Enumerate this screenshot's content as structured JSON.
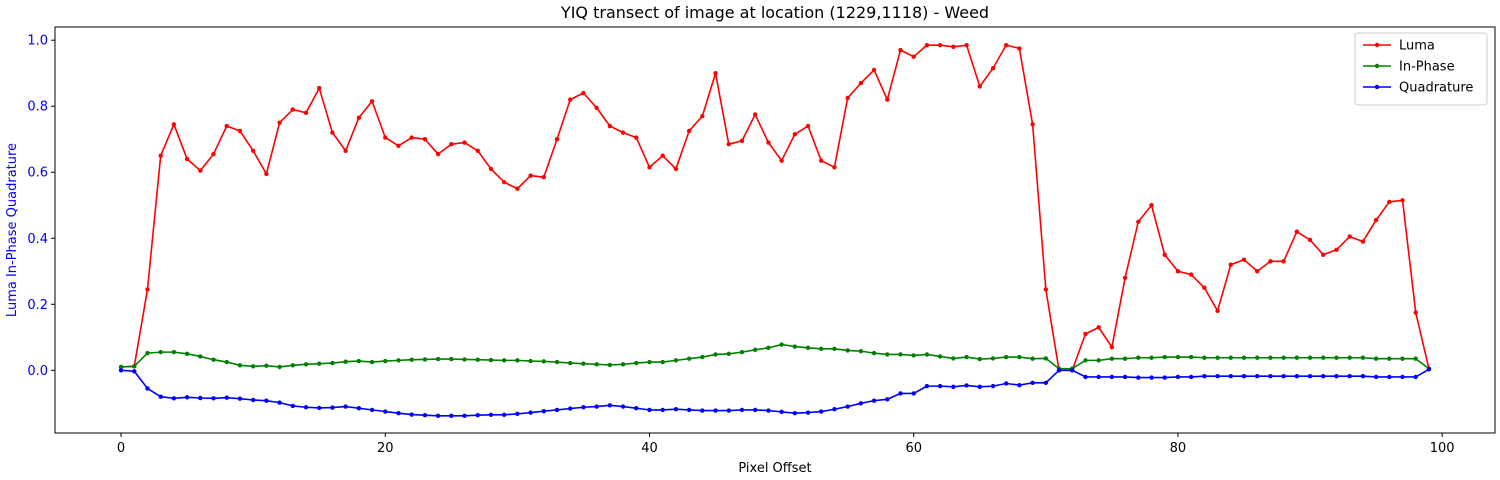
{
  "chart_data": {
    "type": "line",
    "title": "YIQ transect of image at location (1229,1118) - Weed",
    "xlabel": "Pixel Offset",
    "ylabel": "Luma In-Phase Quadrature",
    "xlim": [
      -5,
      104
    ],
    "ylim": [
      -0.19,
      1.04
    ],
    "xticks": [
      0,
      20,
      40,
      60,
      80,
      100
    ],
    "yticks": [
      0.0,
      0.2,
      0.4,
      0.6,
      0.8,
      1.0
    ],
    "ytick_color": "#0000ff",
    "ylabel_color": "#0000ff",
    "grid": false,
    "legend_position": "top-right",
    "x": [
      0,
      1,
      2,
      3,
      4,
      5,
      6,
      7,
      8,
      9,
      10,
      11,
      12,
      13,
      14,
      15,
      16,
      17,
      18,
      19,
      20,
      21,
      22,
      23,
      24,
      25,
      26,
      27,
      28,
      29,
      30,
      31,
      32,
      33,
      34,
      35,
      36,
      37,
      38,
      39,
      40,
      41,
      42,
      43,
      44,
      45,
      46,
      47,
      48,
      49,
      50,
      51,
      52,
      53,
      54,
      55,
      56,
      57,
      58,
      59,
      60,
      61,
      62,
      63,
      64,
      65,
      66,
      67,
      68,
      69,
      70,
      71,
      72,
      73,
      74,
      75,
      76,
      77,
      78,
      79,
      80,
      81,
      82,
      83,
      84,
      85,
      86,
      87,
      88,
      89,
      90,
      91,
      92,
      93,
      94,
      95,
      96,
      97,
      98,
      99
    ],
    "series": [
      {
        "name": "Luma",
        "color": "#ff0000",
        "values": [
          0.01,
          0.012,
          0.245,
          0.65,
          0.745,
          0.64,
          0.605,
          0.655,
          0.74,
          0.725,
          0.665,
          0.595,
          0.75,
          0.79,
          0.78,
          0.855,
          0.72,
          0.665,
          0.765,
          0.815,
          0.705,
          0.68,
          0.705,
          0.7,
          0.655,
          0.685,
          0.69,
          0.665,
          0.61,
          0.57,
          0.55,
          0.59,
          0.585,
          0.7,
          0.82,
          0.84,
          0.795,
          0.74,
          0.72,
          0.705,
          0.615,
          0.65,
          0.61,
          0.725,
          0.77,
          0.9,
          0.685,
          0.695,
          0.775,
          0.69,
          0.635,
          0.715,
          0.74,
          0.635,
          0.615,
          0.825,
          0.87,
          0.91,
          0.82,
          0.97,
          0.95,
          0.985,
          0.985,
          0.98,
          0.985,
          0.86,
          0.915,
          0.985,
          0.975,
          0.745,
          0.245,
          0.0,
          0.0,
          0.11,
          0.13,
          0.07,
          0.28,
          0.45,
          0.5,
          0.35,
          0.3,
          0.29,
          0.25,
          0.18,
          0.32,
          0.335,
          0.3,
          0.33,
          0.33,
          0.42,
          0.395,
          0.35,
          0.365,
          0.405,
          0.39,
          0.455,
          0.51,
          0.515,
          0.175,
          0.005
        ]
      },
      {
        "name": "In-Phase",
        "color": "#008000",
        "values": [
          0.01,
          0.012,
          0.052,
          0.055,
          0.055,
          0.05,
          0.042,
          0.032,
          0.025,
          0.015,
          0.012,
          0.014,
          0.01,
          0.015,
          0.018,
          0.02,
          0.022,
          0.026,
          0.028,
          0.025,
          0.028,
          0.03,
          0.032,
          0.033,
          0.034,
          0.034,
          0.033,
          0.032,
          0.031,
          0.03,
          0.03,
          0.028,
          0.027,
          0.025,
          0.022,
          0.02,
          0.018,
          0.016,
          0.018,
          0.022,
          0.025,
          0.025,
          0.03,
          0.035,
          0.04,
          0.048,
          0.05,
          0.055,
          0.062,
          0.068,
          0.078,
          0.072,
          0.068,
          0.065,
          0.065,
          0.06,
          0.058,
          0.052,
          0.048,
          0.048,
          0.045,
          0.048,
          0.042,
          0.036,
          0.04,
          0.034,
          0.036,
          0.04,
          0.04,
          0.035,
          0.036,
          0.005,
          0.005,
          0.03,
          0.03,
          0.035,
          0.035,
          0.038,
          0.038,
          0.04,
          0.04,
          0.04,
          0.038,
          0.038,
          0.038,
          0.038,
          0.038,
          0.038,
          0.038,
          0.038,
          0.038,
          0.038,
          0.038,
          0.038,
          0.038,
          0.035,
          0.035,
          0.035,
          0.035,
          0.005
        ]
      },
      {
        "name": "Quadrature",
        "color": "#0000ff",
        "values": [
          0.0,
          -0.003,
          -0.055,
          -0.08,
          -0.085,
          -0.082,
          -0.084,
          -0.085,
          -0.083,
          -0.086,
          -0.09,
          -0.092,
          -0.098,
          -0.108,
          -0.112,
          -0.114,
          -0.113,
          -0.11,
          -0.115,
          -0.12,
          -0.125,
          -0.13,
          -0.134,
          -0.136,
          -0.138,
          -0.138,
          -0.138,
          -0.136,
          -0.135,
          -0.135,
          -0.132,
          -0.128,
          -0.124,
          -0.12,
          -0.116,
          -0.112,
          -0.11,
          -0.106,
          -0.11,
          -0.115,
          -0.12,
          -0.12,
          -0.118,
          -0.12,
          -0.122,
          -0.122,
          -0.122,
          -0.12,
          -0.12,
          -0.122,
          -0.126,
          -0.13,
          -0.128,
          -0.125,
          -0.118,
          -0.11,
          -0.1,
          -0.092,
          -0.088,
          -0.07,
          -0.07,
          -0.048,
          -0.048,
          -0.05,
          -0.046,
          -0.05,
          -0.048,
          -0.04,
          -0.045,
          -0.038,
          -0.038,
          0.0,
          0.0,
          -0.02,
          -0.02,
          -0.02,
          -0.02,
          -0.022,
          -0.022,
          -0.022,
          -0.02,
          -0.02,
          -0.018,
          -0.018,
          -0.018,
          -0.018,
          -0.018,
          -0.018,
          -0.018,
          -0.018,
          -0.018,
          -0.018,
          -0.018,
          -0.018,
          -0.018,
          -0.02,
          -0.02,
          -0.02,
          -0.02,
          0.003
        ]
      }
    ]
  }
}
